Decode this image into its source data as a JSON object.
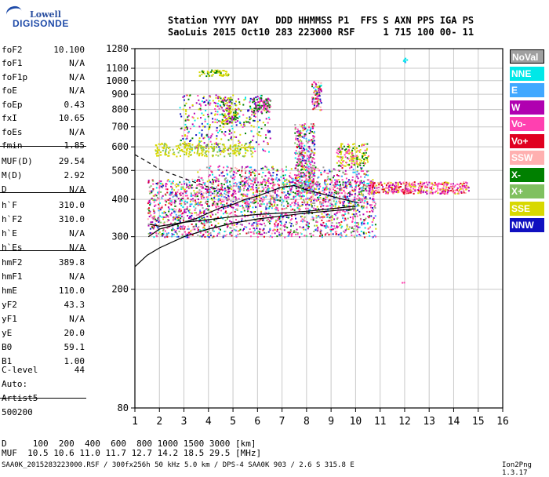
{
  "logo": {
    "line1": "Lowell",
    "line2": "DIGISONDE"
  },
  "header": {
    "line1": "Station YYYY DAY   DDD HHMMSS P1  FFS S AXN PPS IGA PS",
    "line2": "SaoLuis 2015 Oct10 283 223000 RSF     1 715 100 00- 11"
  },
  "params": [
    {
      "label": "foF2",
      "value": "10.100"
    },
    {
      "label": "foF1",
      "value": "N/A"
    },
    {
      "label": "foF1p",
      "value": "N/A"
    },
    {
      "label": "foE",
      "value": "N/A"
    },
    {
      "label": "foEp",
      "value": "0.43"
    },
    {
      "label": "fxI",
      "value": "10.65"
    },
    {
      "label": "foEs",
      "value": "N/A"
    },
    {
      "label": "fmin",
      "value": "1.85"
    },
    {
      "label": "MUF(D)",
      "value": "29.54"
    },
    {
      "label": "M(D)",
      "value": "2.92"
    },
    {
      "label": "D",
      "value": "N/A"
    },
    {
      "label": "h`F",
      "value": "310.0"
    },
    {
      "label": "h`F2",
      "value": "310.0"
    },
    {
      "label": "h`E",
      "value": "N/A"
    },
    {
      "label": "h`Es",
      "value": "N/A"
    },
    {
      "label": "hmF2",
      "value": "389.8"
    },
    {
      "label": "hmF1",
      "value": "N/A"
    },
    {
      "label": "hmE",
      "value": "110.0"
    },
    {
      "label": "yF2",
      "value": "43.3"
    },
    {
      "label": "yF1",
      "value": "N/A"
    },
    {
      "label": "yE",
      "value": "20.0"
    },
    {
      "label": "B0",
      "value": "59.1"
    },
    {
      "label": "B1",
      "value": "1.00"
    },
    {
      "label": "C-level",
      "value": "44"
    },
    {
      "label": "Auto:",
      "value": ""
    },
    {
      "label": "Artist5",
      "value": ""
    },
    {
      "label": "500200",
      "value": ""
    }
  ],
  "legend": [
    {
      "label": "NoVal",
      "color": "#a0a0a0",
      "selected": true
    },
    {
      "label": "NNE",
      "color": "#00e8e8",
      "selected": false
    },
    {
      "label": "E",
      "color": "#40a8ff",
      "selected": false
    },
    {
      "label": "W",
      "color": "#b000b0",
      "selected": false
    },
    {
      "label": "Vo-",
      "color": "#ff40b0",
      "selected": false
    },
    {
      "label": "Vo+",
      "color": "#e00020",
      "selected": false
    },
    {
      "label": "SSW",
      "color": "#ffb0b0",
      "selected": false
    },
    {
      "label": "X-",
      "color": "#008000",
      "selected": false
    },
    {
      "label": "X+",
      "color": "#80c060",
      "selected": false
    },
    {
      "label": "SSE",
      "color": "#d8d800",
      "selected": false
    },
    {
      "label": "NNW",
      "color": "#1010c0",
      "selected": false
    }
  ],
  "footer": {
    "line1": "D     100  200  400  600  800 1000 1500 3000 [km]",
    "line2": "MUF  10.5 10.6 11.0 11.7 12.7 14.2 18.5 29.5 [MHz]",
    "line3": "SAA0K_2015283223000.RSF / 300fx256h 50 kHz 5.0 km / DPS-4 SAA0K 903 / 2.6 S 315.8 E",
    "version": "Ion2Png 1.3.17"
  },
  "chart_data": {
    "type": "scatter",
    "title": "",
    "xlabel": "",
    "ylabel": "",
    "xlim": [
      1,
      16
    ],
    "ylim": [
      80,
      1280
    ],
    "y_scale": "log",
    "grid": true,
    "x_ticks": [
      "1",
      "2",
      "3",
      "4",
      "5",
      "6",
      "7",
      "8",
      "9",
      "10",
      "11",
      "12",
      "13",
      "14",
      "15",
      "16"
    ],
    "y_ticks": [
      "80",
      "200",
      "300",
      "400",
      "500",
      "600",
      "700",
      "800",
      "900",
      "1000",
      "1100",
      "1280"
    ],
    "series": [
      {
        "values": [
          [
            1.55,
            300
          ],
          [
            2,
            318
          ],
          [
            3,
            335
          ],
          [
            4,
            342
          ],
          [
            5,
            350
          ],
          [
            6,
            356
          ],
          [
            7,
            360
          ],
          [
            8,
            365
          ],
          [
            9,
            372
          ],
          [
            10,
            380
          ]
        ]
      },
      {
        "values": [
          [
            1.6,
            330
          ],
          [
            2,
            325
          ],
          [
            2.5,
            330
          ],
          [
            3,
            335
          ],
          [
            3.5,
            345
          ],
          [
            4,
            360
          ],
          [
            4.5,
            375
          ],
          [
            5,
            385
          ],
          [
            5.5,
            400
          ],
          [
            6,
            410
          ],
          [
            6.5,
            425
          ],
          [
            7,
            440
          ],
          [
            7.5,
            445
          ],
          [
            8,
            430
          ],
          [
            8.5,
            420
          ],
          [
            9,
            410
          ],
          [
            9.5,
            400
          ],
          [
            10.1,
            390
          ]
        ]
      },
      {
        "values": [
          [
            1,
            238
          ],
          [
            1.5,
            260
          ],
          [
            2,
            275
          ],
          [
            3,
            300
          ],
          [
            4,
            318
          ],
          [
            5,
            333
          ],
          [
            6,
            344
          ],
          [
            7,
            352
          ],
          [
            8,
            360
          ],
          [
            9,
            366
          ],
          [
            10,
            372
          ]
        ]
      },
      {
        "values": [
          [
            1,
            565
          ],
          [
            1.5,
            535
          ],
          [
            2,
            505
          ],
          [
            3,
            470
          ],
          [
            4,
            440
          ],
          [
            4.5,
            430
          ]
        ]
      }
    ]
  }
}
